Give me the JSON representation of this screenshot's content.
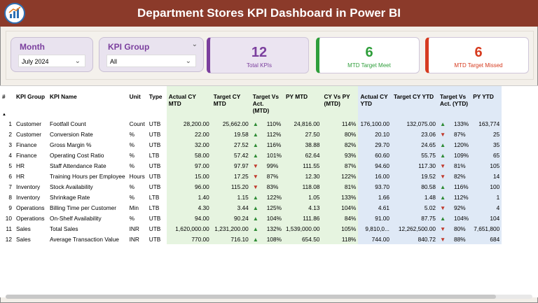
{
  "header": {
    "title": "Department Stores KPI Dashboard in Power BI"
  },
  "filters": {
    "month": {
      "label": "Month",
      "value": "July 2024"
    },
    "kpi_group": {
      "label": "KPI Group",
      "value": "All"
    }
  },
  "cards": {
    "total": {
      "value": "12",
      "caption": "Total KPIs",
      "color": "#7b3f9e"
    },
    "meet": {
      "value": "6",
      "caption": "MTD Target Meet",
      "color": "#2e9e3a"
    },
    "missed": {
      "value": "6",
      "caption": "MTD Target Missed",
      "color": "#d63a1e"
    }
  },
  "table": {
    "headers": {
      "num": "#",
      "group": "KPI Group",
      "name": "KPI Name",
      "unit": "Unit",
      "type": "Type",
      "actual_mtd": "Actual CY MTD",
      "target_mtd": "Target CY MTD",
      "tva_mtd": "Target Vs Act. (MTD)",
      "py_mtd": "PY MTD",
      "cyvspy_mtd": "CY Vs PY (MTD)",
      "actual_ytd": "Actual CY YTD",
      "target_ytd": "Target CY YTD",
      "tva_ytd": "Target Vs Act. (YTD)",
      "py_ytd": "PY YTD"
    },
    "rows": [
      {
        "num": "1",
        "group": "Customer",
        "name": "Footfall Count",
        "unit": "Count",
        "type": "UTB",
        "actual_mtd": "28,200.00",
        "target_mtd": "25,662.00",
        "tva_mtd_dir": "up",
        "tva_mtd": "110%",
        "py_mtd": "24,816.00",
        "cyvspy_mtd": "114%",
        "actual_ytd": "176,100.00",
        "target_ytd": "132,075.00",
        "tva_ytd_dir": "up",
        "tva_ytd": "133%",
        "py_ytd": "163,774"
      },
      {
        "num": "2",
        "group": "Customer",
        "name": "Conversion Rate",
        "unit": "%",
        "type": "UTB",
        "actual_mtd": "22.00",
        "target_mtd": "19.58",
        "tva_mtd_dir": "up",
        "tva_mtd": "112%",
        "py_mtd": "27.50",
        "cyvspy_mtd": "80%",
        "actual_ytd": "20.10",
        "target_ytd": "23.06",
        "tva_ytd_dir": "dn",
        "tva_ytd": "87%",
        "py_ytd": "25"
      },
      {
        "num": "3",
        "group": "Finance",
        "name": "Gross Margin %",
        "unit": "%",
        "type": "UTB",
        "actual_mtd": "32.00",
        "target_mtd": "27.52",
        "tva_mtd_dir": "up",
        "tva_mtd": "116%",
        "py_mtd": "38.88",
        "cyvspy_mtd": "82%",
        "actual_ytd": "29.70",
        "target_ytd": "24.65",
        "tva_ytd_dir": "up",
        "tva_ytd": "120%",
        "py_ytd": "35"
      },
      {
        "num": "4",
        "group": "Finance",
        "name": "Operating Cost Ratio",
        "unit": "%",
        "type": "LTB",
        "actual_mtd": "58.00",
        "target_mtd": "57.42",
        "tva_mtd_dir": "up",
        "tva_mtd": "101%",
        "py_mtd": "62.64",
        "cyvspy_mtd": "93%",
        "actual_ytd": "60.60",
        "target_ytd": "55.75",
        "tva_ytd_dir": "up",
        "tva_ytd": "109%",
        "py_ytd": "65"
      },
      {
        "num": "5",
        "group": "HR",
        "name": "Staff Attendance Rate",
        "unit": "%",
        "type": "UTB",
        "actual_mtd": "97.00",
        "target_mtd": "97.97",
        "tva_mtd_dir": "dn",
        "tva_mtd": "99%",
        "py_mtd": "111.55",
        "cyvspy_mtd": "87%",
        "actual_ytd": "94.60",
        "target_ytd": "117.30",
        "tva_ytd_dir": "dn",
        "tva_ytd": "81%",
        "py_ytd": "105"
      },
      {
        "num": "6",
        "group": "HR",
        "name": "Training Hours per Employee",
        "unit": "Hours",
        "type": "UTB",
        "actual_mtd": "15.00",
        "target_mtd": "17.25",
        "tva_mtd_dir": "dn",
        "tva_mtd": "87%",
        "py_mtd": "12.30",
        "cyvspy_mtd": "122%",
        "actual_ytd": "16.00",
        "target_ytd": "19.52",
        "tva_ytd_dir": "dn",
        "tva_ytd": "82%",
        "py_ytd": "14"
      },
      {
        "num": "7",
        "group": "Inventory",
        "name": "Stock Availability",
        "unit": "%",
        "type": "UTB",
        "actual_mtd": "96.00",
        "target_mtd": "115.20",
        "tva_mtd_dir": "dn",
        "tva_mtd": "83%",
        "py_mtd": "118.08",
        "cyvspy_mtd": "81%",
        "actual_ytd": "93.70",
        "target_ytd": "80.58",
        "tva_ytd_dir": "up",
        "tva_ytd": "116%",
        "py_ytd": "100"
      },
      {
        "num": "8",
        "group": "Inventory",
        "name": "Shrinkage Rate",
        "unit": "%",
        "type": "LTB",
        "actual_mtd": "1.40",
        "target_mtd": "1.15",
        "tva_mtd_dir": "up",
        "tva_mtd": "122%",
        "py_mtd": "1.05",
        "cyvspy_mtd": "133%",
        "actual_ytd": "1.66",
        "target_ytd": "1.48",
        "tva_ytd_dir": "up",
        "tva_ytd": "112%",
        "py_ytd": "1"
      },
      {
        "num": "9",
        "group": "Operations",
        "name": "Billing Time per Customer",
        "unit": "Min",
        "type": "LTB",
        "actual_mtd": "4.30",
        "target_mtd": "3.44",
        "tva_mtd_dir": "up",
        "tva_mtd": "125%",
        "py_mtd": "4.13",
        "cyvspy_mtd": "104%",
        "actual_ytd": "4.61",
        "target_ytd": "5.02",
        "tva_ytd_dir": "dn",
        "tva_ytd": "92%",
        "py_ytd": "4"
      },
      {
        "num": "10",
        "group": "Operations",
        "name": "On-Shelf Availability",
        "unit": "%",
        "type": "UTB",
        "actual_mtd": "94.00",
        "target_mtd": "90.24",
        "tva_mtd_dir": "up",
        "tva_mtd": "104%",
        "py_mtd": "111.86",
        "cyvspy_mtd": "84%",
        "actual_ytd": "91.00",
        "target_ytd": "87.75",
        "tva_ytd_dir": "up",
        "tva_ytd": "104%",
        "py_ytd": "104"
      },
      {
        "num": "11",
        "group": "Sales",
        "name": "Total Sales",
        "unit": "INR",
        "type": "UTB",
        "actual_mtd": "1,620,000.00",
        "target_mtd": "1,231,200.00",
        "tva_mtd_dir": "up",
        "tva_mtd": "132%",
        "py_mtd": "1,539,000.00",
        "cyvspy_mtd": "105%",
        "actual_ytd": "9,810,0...",
        "target_ytd": "12,262,500.00",
        "tva_ytd_dir": "dn",
        "tva_ytd": "80%",
        "py_ytd": "7,651,800"
      },
      {
        "num": "12",
        "group": "Sales",
        "name": "Average Transaction Value",
        "unit": "INR",
        "type": "UTB",
        "actual_mtd": "770.00",
        "target_mtd": "716.10",
        "tva_mtd_dir": "up",
        "tva_mtd": "108%",
        "py_mtd": "654.50",
        "cyvspy_mtd": "118%",
        "actual_ytd": "744.00",
        "target_ytd": "840.72",
        "tva_ytd_dir": "dn",
        "tva_ytd": "88%",
        "py_ytd": "684"
      }
    ]
  },
  "colors": {
    "header_bg": "#8b3a2a",
    "up": "#2e8b35",
    "down": "#c0392b",
    "mtd_bg": "#e6f4e0",
    "ytd_bg": "#dfe9f6"
  }
}
